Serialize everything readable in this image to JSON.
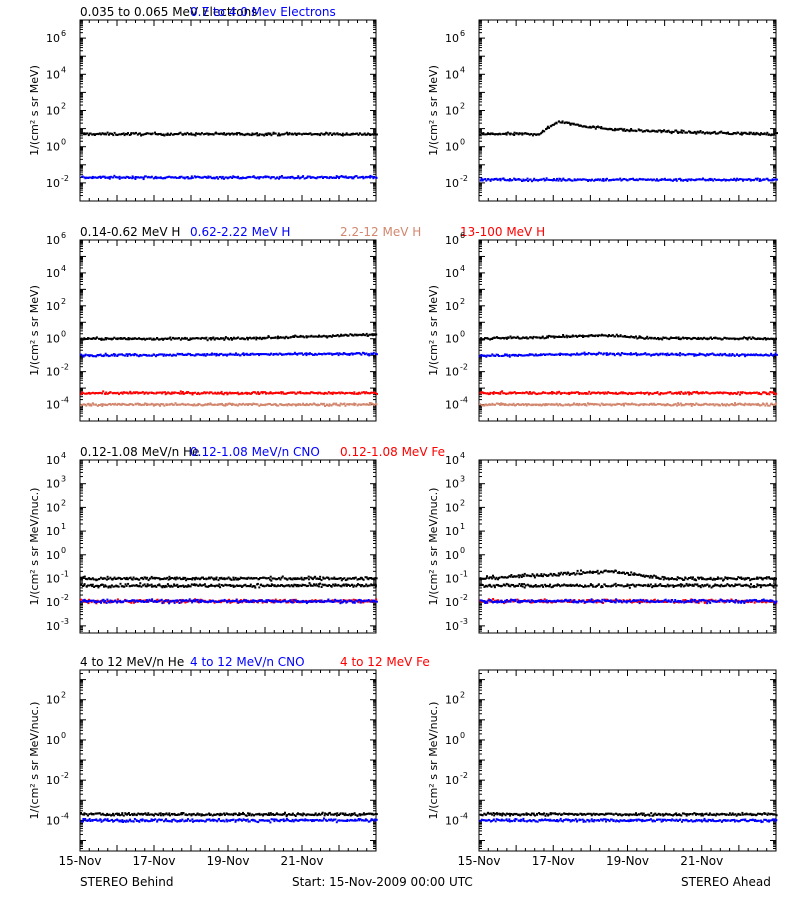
{
  "footer": {
    "left_label": "STEREO Behind",
    "center_label": "Start: 15-Nov-2009 00:00 UTC",
    "right_label": "STEREO Ahead"
  },
  "x_axis": {
    "range_days": [
      0,
      8
    ],
    "tick_labels": [
      "15-Nov",
      "17-Nov",
      "19-Nov",
      "21-Nov"
    ],
    "tick_days": [
      0,
      2,
      4,
      6
    ]
  },
  "chart_data": [
    {
      "type": "scatter",
      "title_labels": [
        {
          "text": "0.035 to 0.065 MeV Electrons",
          "color": "#000000"
        },
        {
          "text": "0.7 to 4.0 Mev Electrons",
          "color": "#0000ff"
        }
      ],
      "ylabel": "1/(cm² s sr MeV)",
      "yscale": "log",
      "ylim": [
        0.001,
        10000000
      ],
      "yticks": [
        {
          "exp": -2
        },
        {
          "exp": 0
        },
        {
          "exp": 2
        },
        {
          "exp": 4
        },
        {
          "exp": 6
        }
      ],
      "series": [
        {
          "color": "#000000",
          "behind": [
            [
              0,
              5
            ],
            [
              2,
              5
            ],
            [
              4,
              5
            ],
            [
              6,
              5
            ],
            [
              8,
              5
            ]
          ],
          "ahead": [
            [
              0,
              5
            ],
            [
              1.6,
              5
            ],
            [
              2.1,
              25
            ],
            [
              3,
              12
            ],
            [
              4,
              8
            ],
            [
              6,
              6
            ],
            [
              8,
              5
            ]
          ]
        },
        {
          "color": "#0000ff",
          "behind": [
            [
              0,
              0.02
            ],
            [
              8,
              0.02
            ]
          ],
          "ahead": [
            [
              0,
              0.015
            ],
            [
              8,
              0.015
            ]
          ]
        }
      ]
    },
    {
      "type": "scatter",
      "title_labels": [
        {
          "text": "0.14-0.62 MeV H",
          "color": "#000000"
        },
        {
          "text": "0.62-2.22 MeV H",
          "color": "#0000ff"
        },
        {
          "text": "2.2-12 MeV H",
          "color": "#d2876e"
        },
        {
          "text": "13-100 MeV H",
          "color": "#ff0000"
        }
      ],
      "ylabel": "1/(cm² s sr MeV)",
      "yscale": "log",
      "ylim": [
        1e-05,
        1000000
      ],
      "yticks": [
        {
          "exp": -4
        },
        {
          "exp": -2
        },
        {
          "exp": 0
        },
        {
          "exp": 2
        },
        {
          "exp": 4
        },
        {
          "exp": 6
        }
      ],
      "series": [
        {
          "color": "#000000",
          "behind": [
            [
              0,
              1
            ],
            [
              4,
              1
            ],
            [
              6,
              1.3
            ],
            [
              8,
              1.8
            ]
          ],
          "ahead": [
            [
              0,
              1
            ],
            [
              2,
              1.3
            ],
            [
              3.5,
              1.6
            ],
            [
              4.5,
              1.1
            ],
            [
              8,
              1
            ]
          ]
        },
        {
          "color": "#0000ff",
          "behind": [
            [
              0,
              0.1
            ],
            [
              8,
              0.12
            ]
          ],
          "ahead": [
            [
              0,
              0.09
            ],
            [
              3,
              0.12
            ],
            [
              8,
              0.1
            ]
          ]
        },
        {
          "color": "#ff0000",
          "behind": [
            [
              0,
              0.0005
            ],
            [
              8,
              0.0005
            ]
          ],
          "ahead": [
            [
              0,
              0.0005
            ],
            [
              8,
              0.0005
            ]
          ]
        },
        {
          "color": "#d2876e",
          "behind": [
            [
              0,
              0.0001
            ],
            [
              8,
              0.0001
            ]
          ],
          "ahead": [
            [
              0,
              0.0001
            ],
            [
              8,
              0.0001
            ]
          ]
        }
      ]
    },
    {
      "type": "scatter",
      "title_labels": [
        {
          "text": "0.12-1.08 MeV/n He",
          "color": "#000000"
        },
        {
          "text": "0.12-1.08 MeV/n CNO",
          "color": "#0000ff"
        },
        {
          "text": "0.12-1.08 MeV Fe",
          "color": "#ff0000"
        }
      ],
      "ylabel": "1/(cm² s sr MeV/nuc.)",
      "yscale": "log",
      "ylim": [
        0.0005,
        10000
      ],
      "yticks": [
        {
          "exp": -3
        },
        {
          "exp": -2
        },
        {
          "exp": -1
        },
        {
          "exp": 0
        },
        {
          "exp": 1
        },
        {
          "exp": 2
        },
        {
          "exp": 3
        },
        {
          "exp": 4
        }
      ],
      "series": [
        {
          "color": "#000000",
          "behind": [
            [
              0,
              0.1
            ],
            [
              8,
              0.1
            ]
          ],
          "ahead": [
            [
              0,
              0.1
            ],
            [
              2,
              0.15
            ],
            [
              3.5,
              0.2
            ],
            [
              5,
              0.1
            ],
            [
              8,
              0.1
            ]
          ]
        },
        {
          "color": "#000000",
          "behind": [
            [
              0,
              0.05
            ],
            [
              8,
              0.05
            ]
          ],
          "ahead": [
            [
              0,
              0.05
            ],
            [
              8,
              0.05
            ]
          ]
        },
        {
          "color": "#ff0000",
          "behind": [
            [
              0,
              0.011
            ],
            [
              8,
              0.011
            ]
          ],
          "ahead": [
            [
              0,
              0.011
            ],
            [
              8,
              0.011
            ]
          ]
        },
        {
          "color": "#0000ff",
          "behind": [
            [
              0,
              0.011
            ],
            [
              8,
              0.011
            ]
          ],
          "ahead": [
            [
              0,
              0.011
            ],
            [
              8,
              0.011
            ]
          ]
        }
      ]
    },
    {
      "type": "scatter",
      "title_labels": [
        {
          "text": "4 to 12 MeV/n He",
          "color": "#000000"
        },
        {
          "text": "4 to 12 MeV/n CNO",
          "color": "#0000ff"
        },
        {
          "text": "4 to 12 MeV Fe",
          "color": "#ff0000"
        }
      ],
      "ylabel": "1/(cm² s sr MeV/nuc.)",
      "yscale": "log",
      "ylim": [
        3e-06,
        3000
      ],
      "yticks": [
        {
          "exp": -4
        },
        {
          "exp": -2
        },
        {
          "exp": 0
        },
        {
          "exp": 2
        }
      ],
      "series": [
        {
          "color": "#000000",
          "behind": [
            [
              0,
              0.0002
            ],
            [
              8,
              0.0002
            ]
          ],
          "ahead": [
            [
              0,
              0.0002
            ],
            [
              8,
              0.0002
            ]
          ]
        },
        {
          "color": "#0000ff",
          "behind": [
            [
              0,
              0.0001
            ],
            [
              8,
              0.0001
            ]
          ],
          "ahead": [
            [
              0,
              0.0001
            ],
            [
              8,
              0.0001
            ]
          ]
        }
      ]
    }
  ]
}
